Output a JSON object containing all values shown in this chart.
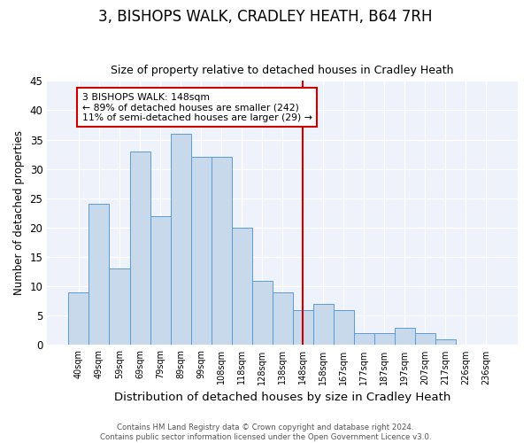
{
  "title": "3, BISHOPS WALK, CRADLEY HEATH, B64 7RH",
  "subtitle": "Size of property relative to detached houses in Cradley Heath",
  "xlabel": "Distribution of detached houses by size in Cradley Heath",
  "ylabel": "Number of detached properties",
  "bar_labels": [
    "40sqm",
    "49sqm",
    "59sqm",
    "69sqm",
    "79sqm",
    "89sqm",
    "99sqm",
    "108sqm",
    "118sqm",
    "128sqm",
    "138sqm",
    "148sqm",
    "158sqm",
    "167sqm",
    "177sqm",
    "187sqm",
    "197sqm",
    "207sqm",
    "217sqm",
    "226sqm",
    "236sqm"
  ],
  "bar_values": [
    9,
    24,
    13,
    33,
    22,
    36,
    32,
    32,
    20,
    11,
    9,
    6,
    7,
    6,
    2,
    2,
    3,
    2,
    1,
    0,
    0
  ],
  "bar_color": "#c9d9ec",
  "bar_edge_color": "#5b9bd5",
  "vline_x_index": 11,
  "vline_color": "#cc0000",
  "annotation_title": "3 BISHOPS WALK: 148sqm",
  "annotation_line2": "← 89% of detached houses are smaller (242)",
  "annotation_line3": "11% of semi-detached houses are larger (29) →",
  "annotation_box_color": "#ffffff",
  "annotation_box_edge_color": "#cc0000",
  "ylim": [
    0,
    45
  ],
  "yticks": [
    0,
    5,
    10,
    15,
    20,
    25,
    30,
    35,
    40,
    45
  ],
  "bg_color": "#eef2fa",
  "footer": "Contains HM Land Registry data © Crown copyright and database right 2024.\nContains public sector information licensed under the Open Government Licence v3.0.",
  "title_fontsize": 12,
  "subtitle_fontsize": 9,
  "xlabel_fontsize": 9.5,
  "ylabel_fontsize": 8.5
}
